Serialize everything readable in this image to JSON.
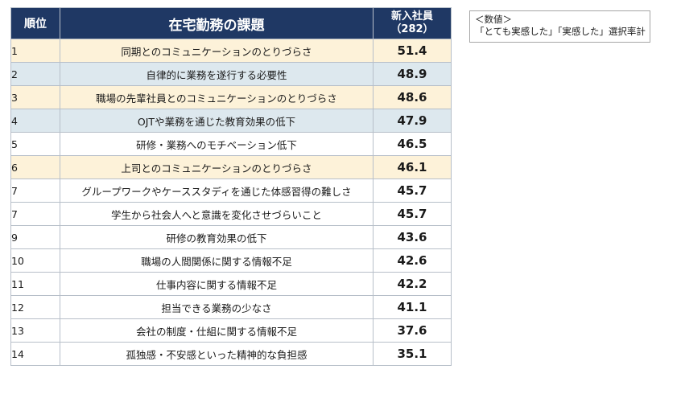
{
  "header": {
    "rank": "順位",
    "issue": "在宅勤務の課題",
    "value_line1": "新入社員",
    "value_line2": "（282）"
  },
  "note": {
    "line1": "＜数値＞",
    "line2": "「とても実感した」「実感した」選択率計"
  },
  "highlight_colors": {
    "yellow": "#fdf2d9",
    "blue": "#dde8ee",
    "header": "#1f3864"
  },
  "rows": [
    {
      "rank": "1",
      "issue": "同期とのコミュニケーションのとりづらさ",
      "value": "51.4",
      "highlight": "yellow"
    },
    {
      "rank": "2",
      "issue": "自律的に業務を遂行する必要性",
      "value": "48.9",
      "highlight": "blue"
    },
    {
      "rank": "3",
      "issue": "職場の先輩社員とのコミュニケーションのとりづらさ",
      "value": "48.6",
      "highlight": "yellow"
    },
    {
      "rank": "4",
      "issue": "OJTや業務を通じた教育効果の低下",
      "value": "47.9",
      "highlight": "blue"
    },
    {
      "rank": "5",
      "issue": "研修・業務へのモチベーション低下",
      "value": "46.5",
      "highlight": ""
    },
    {
      "rank": "6",
      "issue": "上司とのコミュニケーションのとりづらさ",
      "value": "46.1",
      "highlight": "yellow"
    },
    {
      "rank": "7",
      "issue": "グループワークやケーススタディを通じた体感習得の難しさ",
      "value": "45.7",
      "highlight": ""
    },
    {
      "rank": "7",
      "issue": "学生から社会人へと意識を変化させづらいこと",
      "value": "45.7",
      "highlight": ""
    },
    {
      "rank": "9",
      "issue": "研修の教育効果の低下",
      "value": "43.6",
      "highlight": ""
    },
    {
      "rank": "10",
      "issue": "職場の人間関係に関する情報不足",
      "value": "42.6",
      "highlight": ""
    },
    {
      "rank": "11",
      "issue": "仕事内容に関する情報不足",
      "value": "42.2",
      "highlight": ""
    },
    {
      "rank": "12",
      "issue": "担当できる業務の少なさ",
      "value": "41.1",
      "highlight": ""
    },
    {
      "rank": "13",
      "issue": "会社の制度・仕組に関する情報不足",
      "value": "37.6",
      "highlight": ""
    },
    {
      "rank": "14",
      "issue": "孤独感・不安感といった精神的な負担感",
      "value": "35.1",
      "highlight": ""
    }
  ]
}
